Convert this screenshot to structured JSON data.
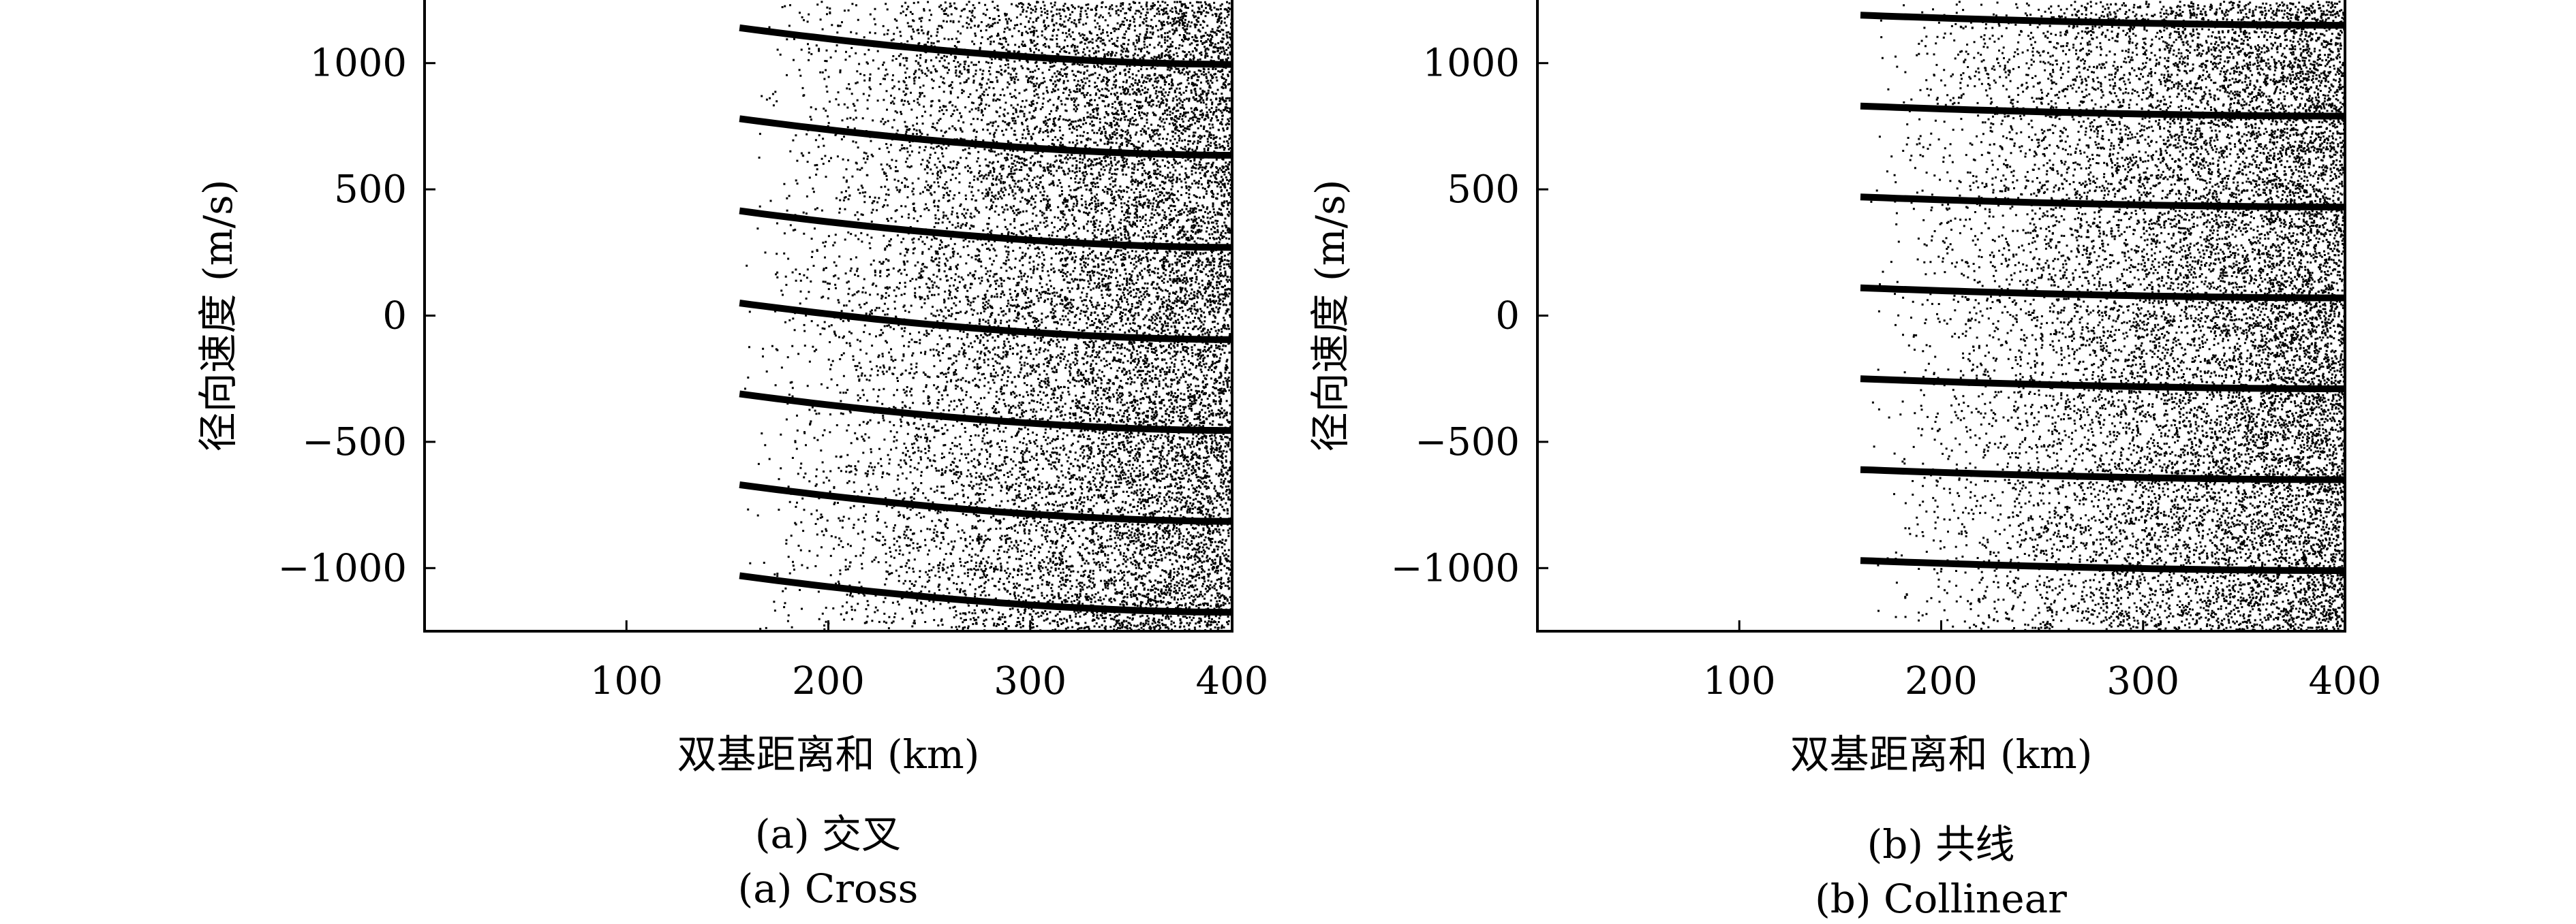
{
  "chart_data": [
    {
      "type": "scatter",
      "panel": "a",
      "caption_zh": "(a) 交叉",
      "caption_en": "(a) Cross",
      "xlabel": "双基距离和 (km)",
      "ylabel": "径向速度 (m/s)",
      "xlim": [
        0,
        400
      ],
      "ylim": [
        -1250,
        1250
      ],
      "x_ticks": [
        100,
        200,
        300,
        400
      ],
      "y_ticks": [
        1000,
        500,
        0,
        -500,
        -1000
      ],
      "x_tick_labels": [
        "100",
        "200",
        "300",
        "400"
      ],
      "y_tick_labels": [
        "1000",
        "500",
        "0",
        "−500",
        "−1000"
      ],
      "grid": false,
      "x_start": 156,
      "x_end": 400,
      "ridges": [
        {
          "y_start": 1140,
          "y_end": 995
        },
        {
          "y_start": 780,
          "y_end": 635
        },
        {
          "y_start": 415,
          "y_end": 270
        },
        {
          "y_start": 50,
          "y_end": -95
        },
        {
          "y_start": -310,
          "y_end": -455
        },
        {
          "y_start": -670,
          "y_end": -815
        },
        {
          "y_start": -1030,
          "y_end": -1175
        }
      ]
    },
    {
      "type": "scatter",
      "panel": "b",
      "caption_zh": "(b) 共线",
      "caption_en": "(b) Collinear",
      "xlabel": "双基距离和 (km)",
      "ylabel": "径向速度 (m/s)",
      "xlim": [
        0,
        400
      ],
      "ylim": [
        -1250,
        1250
      ],
      "x_ticks": [
        100,
        200,
        300,
        400
      ],
      "y_ticks": [
        1000,
        500,
        0,
        -500,
        -1000
      ],
      "x_tick_labels": [
        "100",
        "200",
        "300",
        "400"
      ],
      "y_tick_labels": [
        "1000",
        "500",
        "0",
        "−500",
        "−1000"
      ],
      "grid": false,
      "x_start": 160,
      "x_end": 400,
      "ridges": [
        {
          "y_start": 1190,
          "y_end": 1150
        },
        {
          "y_start": 830,
          "y_end": 790
        },
        {
          "y_start": 470,
          "y_end": 430
        },
        {
          "y_start": 110,
          "y_end": 70
        },
        {
          "y_start": -250,
          "y_end": -290
        },
        {
          "y_start": -610,
          "y_end": -650
        },
        {
          "y_start": -970,
          "y_end": -1010
        }
      ]
    }
  ]
}
